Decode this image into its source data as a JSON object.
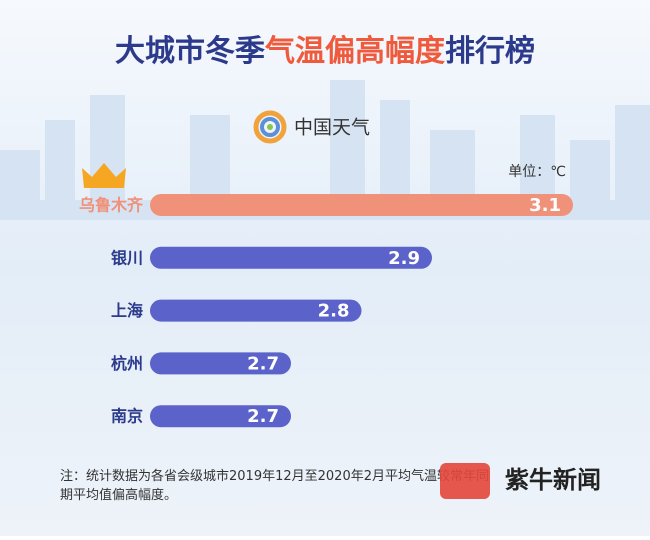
{
  "chart_data": {
    "type": "bar",
    "orientation": "horizontal",
    "title": [
      "大城市冬季",
      "气温偏高幅度",
      "排行榜"
    ],
    "logo_text": "中国天气",
    "unit_label": "单位：℃",
    "categories": [
      "乌鲁木齐",
      "银川",
      "上海",
      "杭州",
      "南京"
    ],
    "values": [
      3.1,
      2.9,
      2.8,
      2.7,
      2.7
    ],
    "colors": [
      "#f0917a",
      "#5b62c9",
      "#5b62c9",
      "#5b62c9",
      "#5b62c9"
    ],
    "xlim": [
      2.5,
      3.1
    ],
    "note": "注：统计数据为各省会级城市2019年12月至2020年2月平均气温较常年同期平均值偏高幅度。",
    "watermark": "紫牛新闻"
  }
}
